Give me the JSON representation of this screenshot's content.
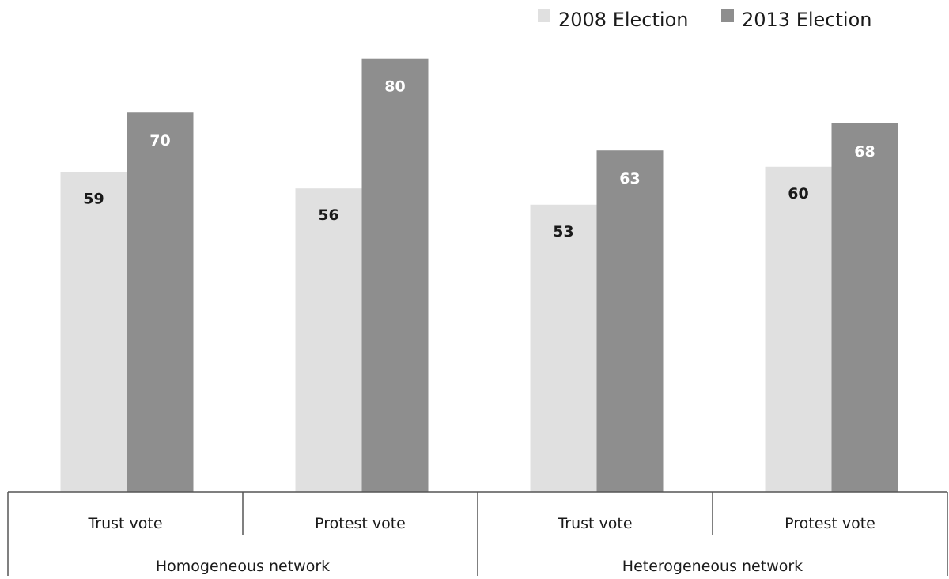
{
  "chart_data": {
    "type": "bar",
    "categories": [
      "Trust vote",
      "Protest vote",
      "Trust vote",
      "Protest vote"
    ],
    "groups": [
      {
        "label": "Homogeneous network",
        "categories": [
          0,
          1
        ]
      },
      {
        "label": "Heterogeneous network",
        "categories": [
          2,
          3
        ]
      }
    ],
    "series": [
      {
        "name": "2008 Election",
        "color": "#e0e0e0",
        "label_color": "#1a1a1a",
        "values": [
          59,
          56,
          53,
          60
        ]
      },
      {
        "name": "2013 Election",
        "color": "#8e8e8e",
        "label_color": "#ffffff",
        "values": [
          70,
          80,
          63,
          68
        ]
      }
    ],
    "ylim": [
      0,
      82
    ],
    "grid": false,
    "legend_position": "top-right",
    "title": "",
    "xlabel": "",
    "ylabel": ""
  }
}
